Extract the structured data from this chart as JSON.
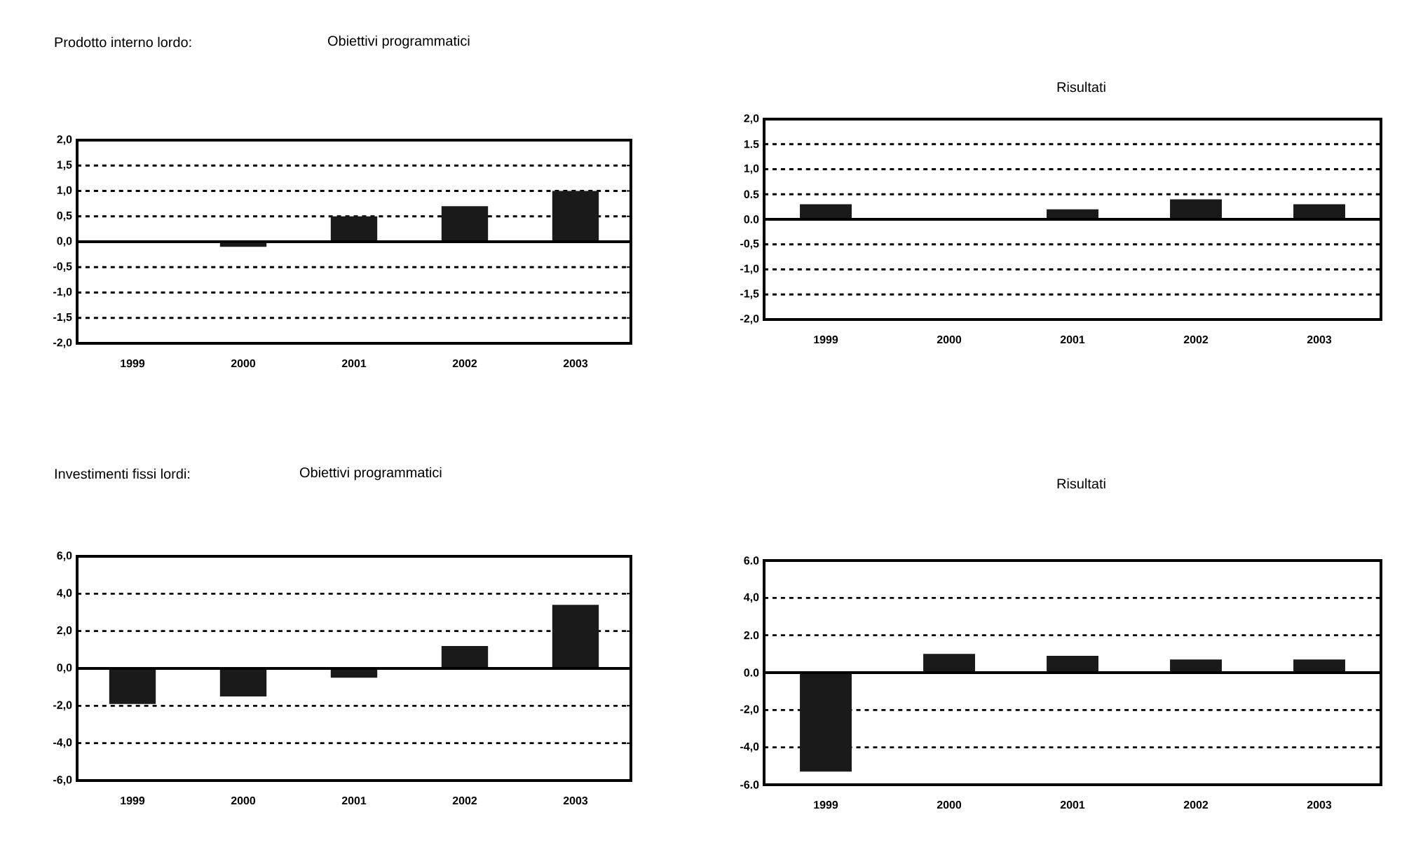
{
  "chart_data": [
    {
      "type": "bar",
      "title": "Prodotto interno lordo:",
      "subtitle": "Obiettivi programmatici",
      "categories": [
        "1999",
        "2000",
        "2001",
        "2002",
        "2003"
      ],
      "values": [
        0.0,
        -0.1,
        0.5,
        0.7,
        1.0
      ],
      "color": "#1a1a1a",
      "ylim": [
        -2.0,
        2.0
      ],
      "yticks": [
        {
          "value": 2.0,
          "label": "2,0"
        },
        {
          "value": 1.5,
          "label": "1,5"
        },
        {
          "value": 1.0,
          "label": "1,0"
        },
        {
          "value": 0.5,
          "label": "0,5"
        },
        {
          "value": 0.0,
          "label": "0,0"
        },
        {
          "value": -0.5,
          "label": "-0,5"
        },
        {
          "value": -1.0,
          "label": "-1,0"
        },
        {
          "value": -1.5,
          "label": "-1,5"
        },
        {
          "value": -2.0,
          "label": "-2,0"
        }
      ],
      "grid": "y"
    },
    {
      "type": "bar",
      "title": "Risultati",
      "categories": [
        "1999",
        "2000",
        "2001",
        "2002",
        "2003"
      ],
      "values": [
        0.3,
        0.0,
        0.2,
        0.4,
        0.3
      ],
      "color": "#1a1a1a",
      "ylim": [
        -2.0,
        2.0
      ],
      "yticks": [
        {
          "value": 2.0,
          "label": "2,0"
        },
        {
          "value": 1.5,
          "label": "1.5"
        },
        {
          "value": 1.0,
          "label": "1,0"
        },
        {
          "value": 0.5,
          "label": "0.5"
        },
        {
          "value": 0.0,
          "label": "0.0"
        },
        {
          "value": -0.5,
          "label": "-0,5"
        },
        {
          "value": -1.0,
          "label": "-1,0"
        },
        {
          "value": -1.5,
          "label": "-1,5"
        },
        {
          "value": -2.0,
          "label": "-2,0"
        }
      ],
      "grid": "y"
    },
    {
      "type": "bar",
      "title": "Investimenti fissi lordi:",
      "subtitle": "Obiettivi programmatici",
      "categories": [
        "1999",
        "2000",
        "2001",
        "2002",
        "2003"
      ],
      "values": [
        -1.9,
        -1.5,
        -0.5,
        1.2,
        3.4
      ],
      "color": "#1a1a1a",
      "ylim": [
        -6.0,
        6.0
      ],
      "yticks": [
        {
          "value": 6.0,
          "label": "6,0"
        },
        {
          "value": 4.0,
          "label": "4,0"
        },
        {
          "value": 2.0,
          "label": "2,0"
        },
        {
          "value": 0.0,
          "label": "0,0"
        },
        {
          "value": -2.0,
          "label": "-2,0"
        },
        {
          "value": -4.0,
          "label": "-4,0"
        },
        {
          "value": -6.0,
          "label": "-6,0"
        }
      ],
      "grid": "y"
    },
    {
      "type": "bar",
      "title": "Risultati",
      "categories": [
        "1999",
        "2000",
        "2001",
        "2002",
        "2003"
      ],
      "values": [
        -5.3,
        1.0,
        0.9,
        0.7,
        0.7
      ],
      "color": "#1a1a1a",
      "ylim": [
        -6.0,
        6.0
      ],
      "yticks": [
        {
          "value": 6.0,
          "label": "6.0"
        },
        {
          "value": 4.0,
          "label": "4,0"
        },
        {
          "value": 2.0,
          "label": "2.0"
        },
        {
          "value": 0.0,
          "label": "0.0"
        },
        {
          "value": -2.0,
          "label": "-2,0"
        },
        {
          "value": -4.0,
          "label": "-4,0"
        },
        {
          "value": -6.0,
          "label": "-6.0"
        }
      ],
      "grid": "y"
    }
  ]
}
